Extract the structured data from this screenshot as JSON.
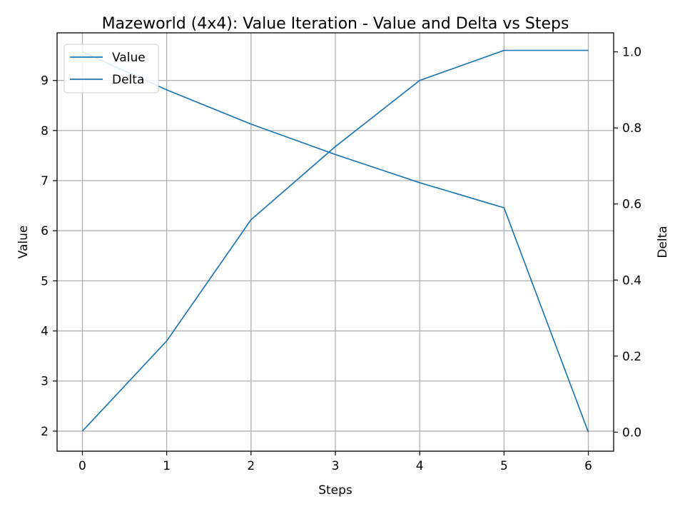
{
  "chart_data": {
    "type": "line",
    "title": "Mazeworld (4x4): Value Iteration - Value and Delta vs Steps",
    "xlabel": "Steps",
    "ylabel": "Value",
    "y2label": "Delta",
    "x": [
      0,
      1,
      2,
      3,
      4,
      5,
      6
    ],
    "xlim": [
      -0.3,
      6.3
    ],
    "ylim": [
      1.6,
      9.95
    ],
    "y2lim": [
      -0.05,
      1.05
    ],
    "xticks": [
      "0",
      "1",
      "2",
      "3",
      "4",
      "5",
      "6"
    ],
    "yticks": [
      "2",
      "3",
      "4",
      "5",
      "6",
      "7",
      "8",
      "9"
    ],
    "y2ticks": [
      "0.0",
      "0.2",
      "0.4",
      "0.6",
      "0.8",
      "1.0"
    ],
    "grid": true,
    "legend": "upper-left",
    "series": [
      {
        "name": "Value",
        "axis": "left",
        "color": "#1f77b4",
        "values": [
          2.0,
          3.8,
          6.22,
          7.68,
          9.0,
          9.6,
          9.6
        ]
      },
      {
        "name": "Delta",
        "axis": "right",
        "color": "#1f77b4",
        "values": [
          1.0,
          0.9,
          0.81,
          0.73,
          0.656,
          0.59,
          0.0
        ]
      }
    ]
  }
}
